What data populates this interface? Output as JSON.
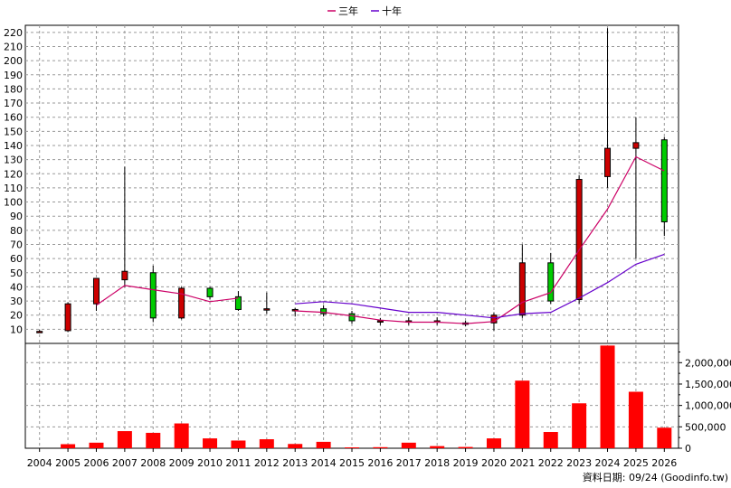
{
  "chart_data": [
    {
      "type": "candlestick",
      "legend_position": "top-center",
      "grid": true,
      "x": [
        "2004",
        "2005",
        "2006",
        "2007",
        "2008",
        "2009",
        "2010",
        "2011",
        "2012",
        "2013",
        "2014",
        "2015",
        "2016",
        "2017",
        "2018",
        "2019",
        "2020",
        "2021",
        "2022",
        "2023",
        "2024",
        "2025",
        "2026"
      ],
      "ylim": [
        0,
        225
      ],
      "yticks": [
        10,
        20,
        30,
        40,
        50,
        60,
        70,
        80,
        90,
        100,
        110,
        120,
        130,
        140,
        150,
        160,
        170,
        180,
        190,
        200,
        210,
        220
      ],
      "candles": [
        {
          "open": 8.5,
          "high": 9.5,
          "low": 8.0,
          "close": 8.5
        },
        {
          "open": 9.0,
          "high": 29.0,
          "low": 8.0,
          "close": 28.0
        },
        {
          "open": 28.0,
          "high": 46.0,
          "low": 23.0,
          "close": 46.0
        },
        {
          "open": 45.0,
          "high": 125.0,
          "low": 40.0,
          "close": 51.0
        },
        {
          "open": 50.0,
          "high": 55.0,
          "low": 15.0,
          "close": 18.0
        },
        {
          "open": 18.0,
          "high": 40.0,
          "low": 17.0,
          "close": 39.0
        },
        {
          "open": 39.0,
          "high": 40.0,
          "low": 31.0,
          "close": 33.0
        },
        {
          "open": 33.0,
          "high": 37.0,
          "low": 23.0,
          "close": 24.0
        },
        {
          "open": 24.0,
          "high": 36.0,
          "low": 21.0,
          "close": 24.5
        },
        {
          "open": 23.0,
          "high": 25.0,
          "low": 19.0,
          "close": 24.0
        },
        {
          "open": 24.5,
          "high": 27.0,
          "low": 19.0,
          "close": 21.0
        },
        {
          "open": 21.0,
          "high": 23.0,
          "low": 14.0,
          "close": 16.0
        },
        {
          "open": 15.5,
          "high": 18.0,
          "low": 13.0,
          "close": 16.0
        },
        {
          "open": 15.0,
          "high": 18.5,
          "low": 13.0,
          "close": 16.0
        },
        {
          "open": 15.0,
          "high": 18.5,
          "low": 13.0,
          "close": 16.0
        },
        {
          "open": 13.5,
          "high": 16.0,
          "low": 12.0,
          "close": 14.5
        },
        {
          "open": 14.5,
          "high": 22.0,
          "low": 9.0,
          "close": 20.0
        },
        {
          "open": 20.0,
          "high": 70.0,
          "low": 18.0,
          "close": 57.0
        },
        {
          "open": 57.0,
          "high": 64.0,
          "low": 28.0,
          "close": 30.0
        },
        {
          "open": 31.0,
          "high": 119.0,
          "low": 28.0,
          "close": 116.0
        },
        {
          "open": 118.0,
          "high": 223.0,
          "low": 110.0,
          "close": 138.0
        },
        {
          "open": 138.0,
          "high": 160.0,
          "low": 60.0,
          "close": 142.0
        },
        {
          "open": 144.0,
          "high": 146.0,
          "low": 76.0,
          "close": 86.0
        }
      ],
      "series": [
        {
          "name": "三年",
          "color": "#cc0066",
          "values": [
            null,
            null,
            27.0,
            41.0,
            38.0,
            35.0,
            29.5,
            32.0,
            null,
            23.0,
            22.0,
            19.5,
            16.5,
            15.0,
            15.0,
            14.0,
            15.5,
            29.0,
            36.0,
            66.0,
            95.0,
            132.0,
            122.0
          ]
        },
        {
          "name": "十年",
          "color": "#6600cc",
          "values": [
            null,
            null,
            null,
            null,
            null,
            null,
            null,
            null,
            null,
            28.0,
            29.5,
            28.0,
            25.0,
            22.0,
            22.0,
            20.0,
            18.0,
            21.0,
            22.0,
            32.0,
            43.0,
            56.0,
            63.0
          ]
        }
      ]
    },
    {
      "type": "bar",
      "x": [
        "2004",
        "2005",
        "2006",
        "2007",
        "2008",
        "2009",
        "2010",
        "2011",
        "2012",
        "2013",
        "2014",
        "2015",
        "2016",
        "2017",
        "2018",
        "2019",
        "2020",
        "2021",
        "2022",
        "2023",
        "2024",
        "2025",
        "2026"
      ],
      "values": [
        0,
        95000,
        130000,
        400000,
        360000,
        580000,
        230000,
        180000,
        210000,
        100000,
        150000,
        20000,
        25000,
        130000,
        50000,
        30000,
        230000,
        1580000,
        380000,
        1050000,
        2400000,
        1320000,
        480000
      ],
      "color": "#ff0000",
      "ylim": [
        0,
        2450000
      ],
      "yticks": [
        0,
        500000,
        1000000,
        1500000,
        2000000
      ],
      "ytick_labels": [
        "0",
        "500,000",
        "1,000,000",
        "1,500,000",
        "2,000,000"
      ]
    }
  ],
  "footer": {
    "source_note": "資料日期: 09/24  (Goodinfo.tw)"
  }
}
